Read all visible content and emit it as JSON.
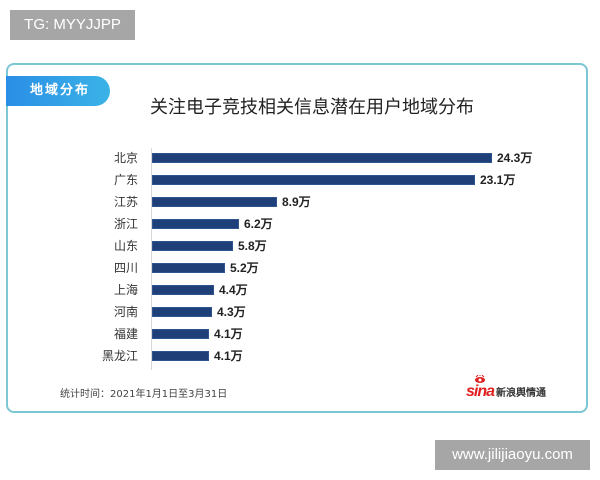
{
  "watermarks": {
    "top_left": "TG: MYYJJPP",
    "bottom_right": "www.jilijiaoyu.com"
  },
  "card": {
    "section_label": "地域分布",
    "title": "关注电子竞技相关信息潜在用户地域分布",
    "footer_note": "统计时间：2021年1月1日至3月31日",
    "brand_logo": "sina",
    "brand_text": "新浪舆情通"
  },
  "colors": {
    "bar": "#1f3f78",
    "card_border": "#7cc7d3",
    "pill_start": "#2a8ee6",
    "pill_end": "#3ab3e6",
    "watermark_bg": "#a6a6a6"
  },
  "chart_data": {
    "type": "bar",
    "orientation": "horizontal",
    "title": "关注电子竞技相关信息潜在用户地域分布",
    "xlabel": "",
    "ylabel": "",
    "unit": "万",
    "categories": [
      "北京",
      "广东",
      "江苏",
      "浙江",
      "山东",
      "四川",
      "上海",
      "河南",
      "福建",
      "黑龙江"
    ],
    "values": [
      24.3,
      23.1,
      8.9,
      6.2,
      5.8,
      5.2,
      4.4,
      4.3,
      4.1,
      4.1
    ],
    "labels": [
      "24.3万",
      "23.1万",
      "8.9万",
      "6.2万",
      "5.8万",
      "5.2万",
      "4.4万",
      "4.3万",
      "4.1万",
      "4.1万"
    ],
    "xlim": [
      0,
      24.3
    ],
    "grid": false,
    "legend": "none",
    "note": "统计时间：2021年1月1日至3月31日"
  }
}
